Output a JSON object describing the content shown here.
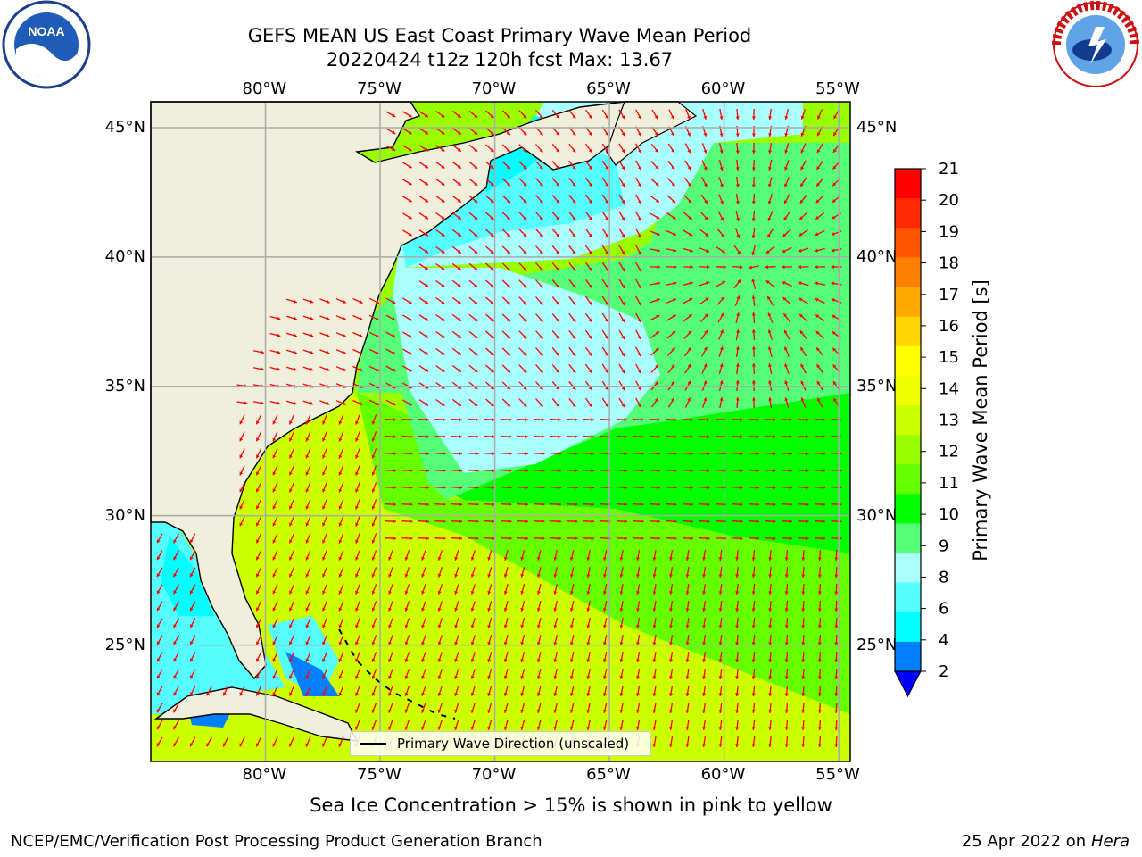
{
  "title_line1": "GEFS MEAN US East Coast Primary Wave Mean Period",
  "title_line2": "20220424 t12z 120h fcst   Max: 13.67",
  "logos": {
    "left": "noaa-logo",
    "right": "national-weather-service-logo",
    "left_text": "NOAA",
    "right_text": "NATIONAL WEATHER SERVICE"
  },
  "map": {
    "lon_ticks": [
      "80°W",
      "75°W",
      "70°W",
      "65°W",
      "60°W",
      "55°W"
    ],
    "lat_ticks": [
      "45°N",
      "40°N",
      "35°N",
      "30°N",
      "25°N"
    ],
    "lon_range": [
      -85,
      -54.5
    ],
    "lat_range": [
      20.5,
      46
    ],
    "land_color": "#efefdc",
    "arrow_color": "#ff0000",
    "legend_label": "Primary Wave Direction (unscaled)"
  },
  "colorbar": {
    "label": "Primary Wave Mean Period [s]",
    "ticks": [
      "21",
      "20",
      "19",
      "18",
      "17",
      "16",
      "15",
      "14",
      "13",
      "12",
      "11",
      "10",
      "9",
      "8",
      "6",
      "4",
      "2"
    ],
    "colors": [
      "#ff0000",
      "#ff2a00",
      "#ff5500",
      "#ff7f00",
      "#ffaa00",
      "#ffd400",
      "#ffff00",
      "#f0ff00",
      "#ccff00",
      "#99ff00",
      "#66ff00",
      "#00ff00",
      "#55ff77",
      "#aaffff",
      "#55ffff",
      "#00ffff",
      "#007fff"
    ],
    "under_color": "#0000ff"
  },
  "caption": "Sea Ice Concentration > 15% is shown in pink to yellow",
  "footer_left": "NCEP/EMC/Verification Post Processing Product Generation Branch",
  "footer_right_date": "25 Apr 2022 on ",
  "footer_right_host": "Hera"
}
